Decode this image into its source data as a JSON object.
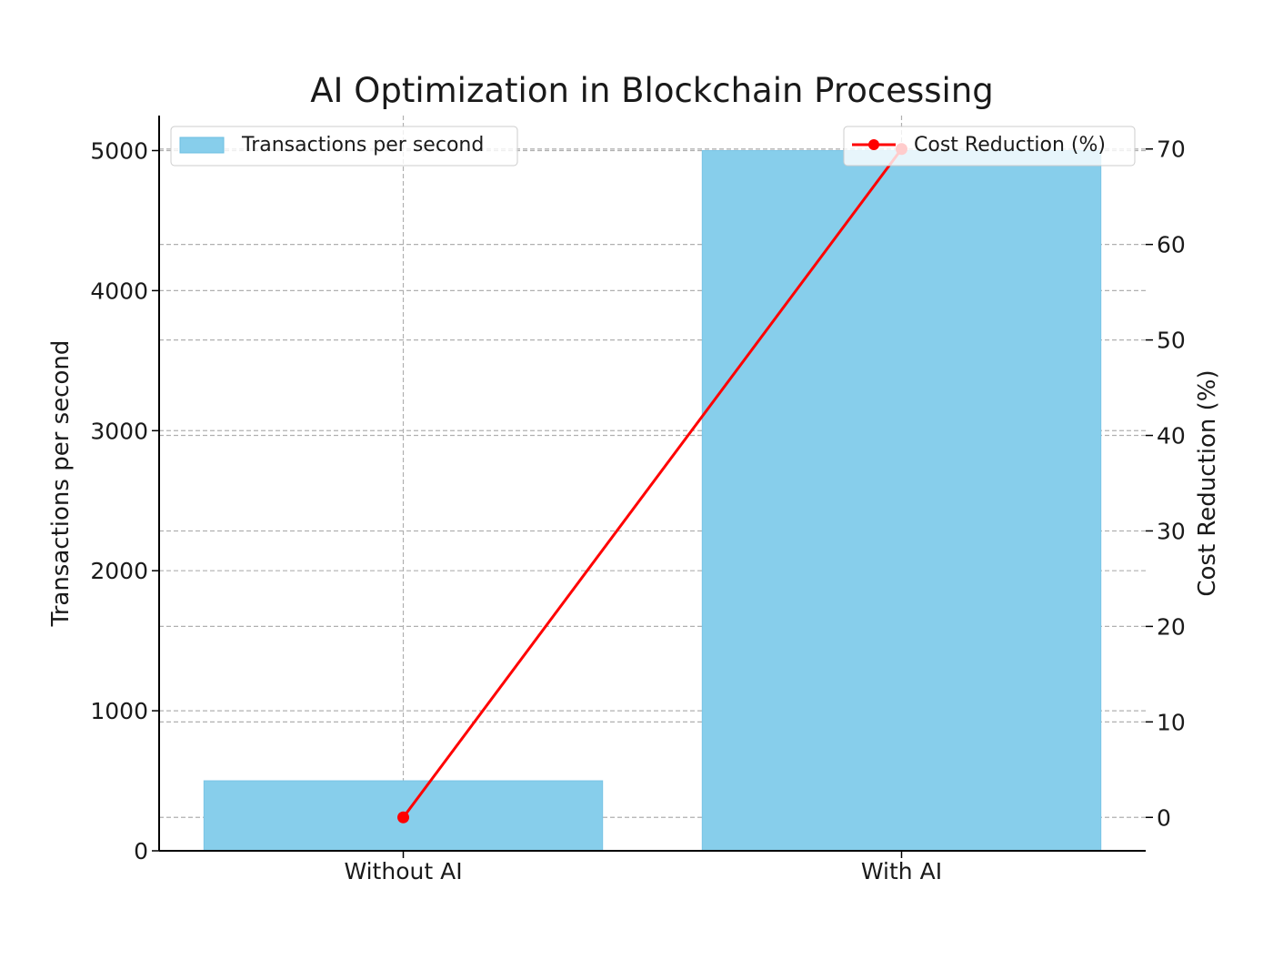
{
  "chart_data": {
    "type": "bar+line",
    "title": "AI Optimization in Blockchain Processing",
    "categories": [
      "Without AI",
      "With AI"
    ],
    "series": [
      {
        "name": "Transactions per second",
        "type": "bar",
        "axis": "left",
        "values": [
          500,
          5000
        ],
        "color": "#87ceeb"
      },
      {
        "name": "Cost Reduction (%)",
        "type": "line",
        "axis": "right",
        "values": [
          0,
          70
        ],
        "color": "#ff0000",
        "marker": "circle"
      }
    ],
    "ylabel": "Transactions per second",
    "y2label": "Cost Reduction (%)",
    "ylim": [
      0,
      5250
    ],
    "y2lim": [
      -3.5,
      73.5
    ],
    "yticks": [
      0,
      1000,
      2000,
      3000,
      4000,
      5000
    ],
    "y2ticks": [
      0,
      10,
      20,
      30,
      40,
      50,
      60,
      70
    ],
    "grid": true,
    "legends": [
      {
        "label": "Transactions per second",
        "placement": "top-left"
      },
      {
        "label": "Cost Reduction (%)",
        "placement": "top-right"
      }
    ]
  }
}
